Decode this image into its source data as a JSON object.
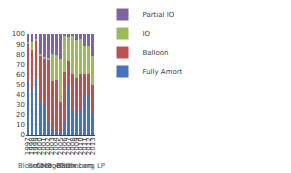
{
  "chart_data": {
    "type": "bar",
    "stacked": true,
    "categories": [
      "1997",
      "1998",
      "1999",
      "2000",
      "2001",
      "2002",
      "2003",
      "2004",
      "2005",
      "2006",
      "2007",
      "2008",
      "2009",
      "2010",
      "2011",
      "2012",
      "2013"
    ],
    "series": [
      {
        "name": "Fully Amort",
        "color": "#4472C4",
        "values": [
          52,
          46,
          55,
          33,
          30,
          14,
          5,
          4,
          4,
          14,
          50,
          25,
          21,
          25,
          40,
          40,
          22
        ]
      },
      {
        "name": "Balloon",
        "color": "#C0504D",
        "values": [
          38,
          38,
          38,
          45,
          45,
          60,
          48,
          50,
          29,
          48,
          23,
          35,
          35,
          35,
          20,
          20,
          28
        ]
      },
      {
        "name": "IO",
        "color": "#9BBB59",
        "values": [
          2,
          8,
          2,
          2,
          2,
          2,
          27,
          25,
          42,
          36,
          24,
          38,
          38,
          35,
          28,
          28,
          28
        ]
      },
      {
        "name": "Partial IO",
        "color": "#8064A2",
        "values": [
          8,
          8,
          5,
          20,
          23,
          24,
          20,
          21,
          25,
          2,
          3,
          2,
          6,
          5,
          12,
          12,
          22
        ]
      }
    ],
    "ylim": [
      0,
      100
    ],
    "yticks": [
      0,
      10,
      20,
      30,
      40,
      50,
      60,
      70,
      80,
      90,
      100
    ],
    "grid": true,
    "legend": "top",
    "annotations": [
      "Source: Bloomberg LP",
      "CMB <GO>",
      "BloombergBriefs.com"
    ]
  }
}
